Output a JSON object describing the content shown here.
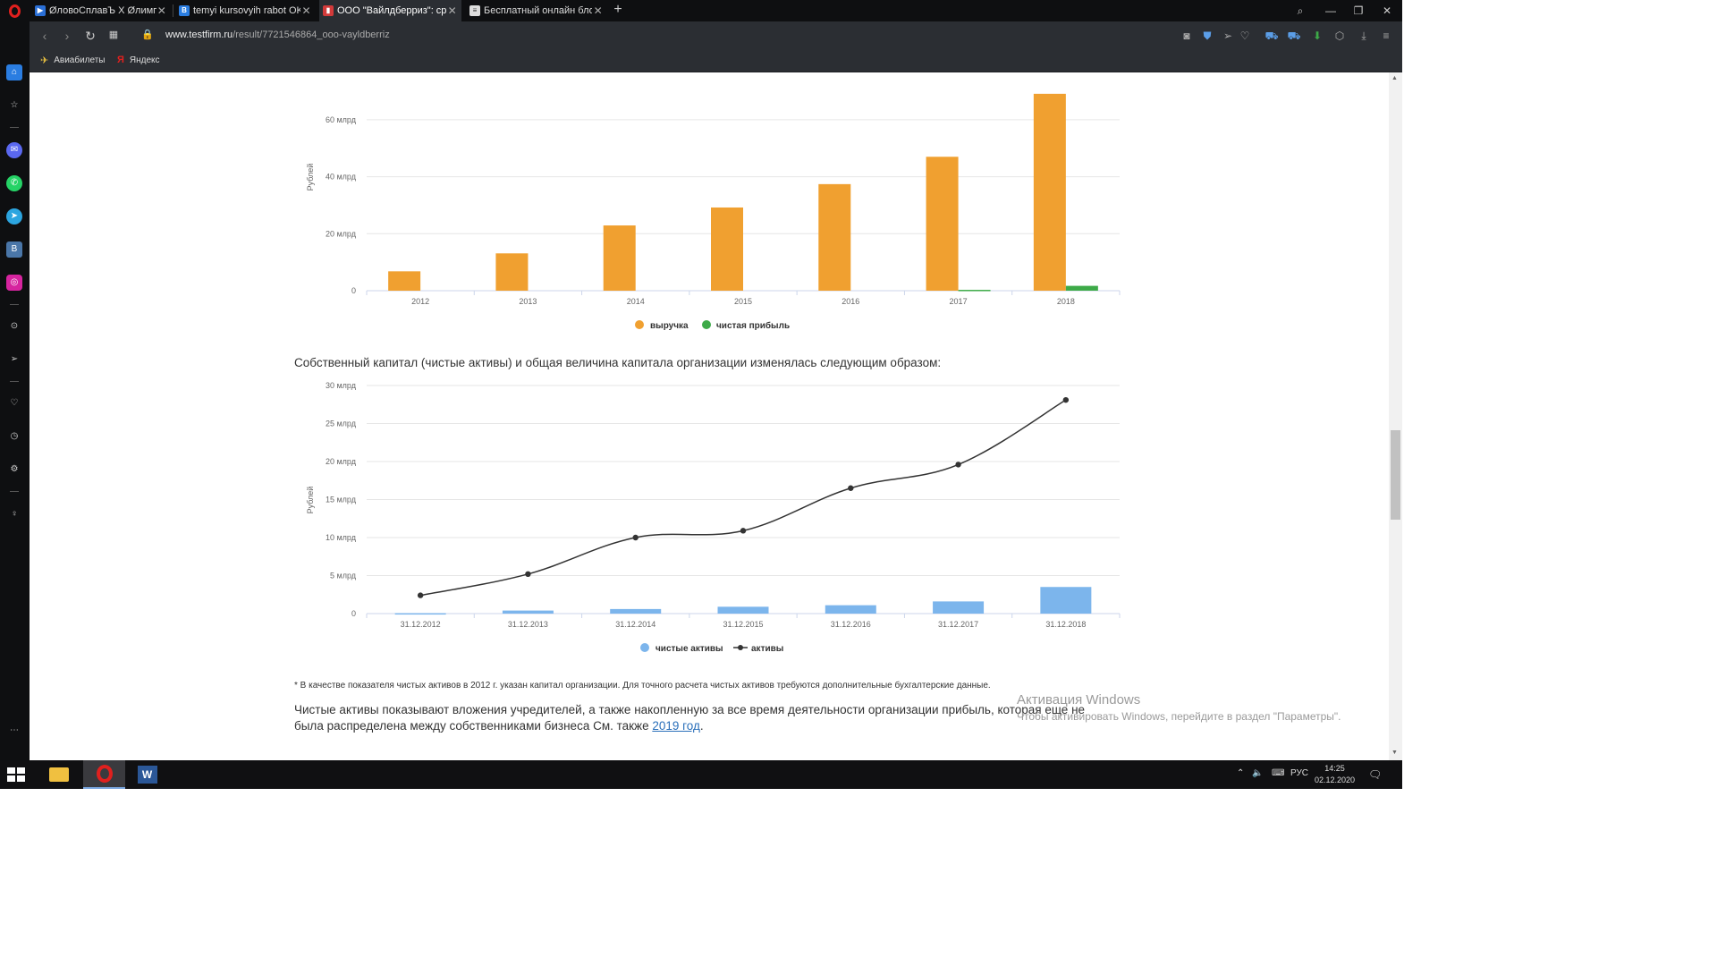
{
  "tabs": [
    {
      "title": "ØловоСплавЪ Х Øлимпий",
      "icon": "play-icon",
      "color": "#2a6fd6",
      "active": false
    },
    {
      "title": "temyi kursovyih rabot OKD",
      "icon": "vk-icon",
      "color": "#2a7de1",
      "active": false
    },
    {
      "title": "ООО \"Вайлдберриз\": срав",
      "icon": "bar-chart-icon",
      "color": "#d23a3a",
      "active": true
    },
    {
      "title": "Бесплатный онлайн блокн",
      "icon": "document-icon",
      "color": "#dddddd",
      "active": false
    }
  ],
  "address": {
    "domain": "www.testfirm.ru",
    "path": "/result/7721546864_ooo-vayldberriz"
  },
  "bookmarks": [
    {
      "label": "Авиабилеты",
      "icon": "plane-icon"
    },
    {
      "label": "Яндекс",
      "icon": "yandex-icon"
    }
  ],
  "paragraph1": "Собственный капитал (чистые активы) и общая величина капитала организации изменялась следующим образом:",
  "footnote": "* В качестве показателя чистых активов в 2012 г. указан капитал организации. Для точного расчета чистых активов требуются дополнительные бухгалтерские данные.",
  "paragraph2": {
    "text": "Чистые активы показывают вложения учредителей, а также накопленную за все время деятельности организации прибыль, которая еще не была распределена между собственниками бизнеса См. также ",
    "link": "2019 год",
    "end": "."
  },
  "watermark": {
    "line1": "Активация Windows",
    "line2": "Чтобы активировать Windows, перейдите в раздел \"Параметры\"."
  },
  "taskbar": {
    "lang": "РУС",
    "time": "14:25",
    "date": "02.12.2020"
  },
  "chart_data": [
    {
      "type": "bar",
      "categories": [
        "2012",
        "2013",
        "2014",
        "2015",
        "2016",
        "2017",
        "2018"
      ],
      "ylabel": "Рублей",
      "yticks": [
        {
          "v": 0,
          "label": "0"
        },
        {
          "v": 20,
          "label": "20 млрд"
        },
        {
          "v": 40,
          "label": "40 млрд"
        },
        {
          "v": 60,
          "label": "60 млрд"
        }
      ],
      "ylim": [
        0,
        70
      ],
      "unit": "млрд руб.",
      "series": [
        {
          "name": "выручка",
          "color": "#f0a030",
          "values": [
            6.8,
            13.1,
            22.9,
            29.2,
            37.4,
            47.0,
            69.1
          ]
        },
        {
          "name": "чистая прибыль",
          "color": "#3daa48",
          "values": [
            0,
            0,
            0,
            0,
            0,
            0.3,
            1.7
          ]
        }
      ],
      "grid": true,
      "legend": "bottom"
    },
    {
      "type": "bar+line",
      "categories": [
        "31.12.2012",
        "31.12.2013",
        "31.12.2014",
        "31.12.2015",
        "31.12.2016",
        "31.12.2017",
        "31.12.2018"
      ],
      "ylabel": "Рублей",
      "yticks": [
        {
          "v": 0,
          "label": "0"
        },
        {
          "v": 5,
          "label": "5 млрд"
        },
        {
          "v": 10,
          "label": "10 млрд"
        },
        {
          "v": 15,
          "label": "15 млрд"
        },
        {
          "v": 20,
          "label": "20 млрд"
        },
        {
          "v": 25,
          "label": "25 млрд"
        },
        {
          "v": 30,
          "label": "30 млрд"
        }
      ],
      "ylim": [
        0,
        30
      ],
      "unit": "млрд руб.",
      "series": [
        {
          "name": "чистые активы",
          "kind": "bar",
          "color": "#7cb5ec",
          "values": [
            0.05,
            0.4,
            0.6,
            0.9,
            1.1,
            1.6,
            3.5
          ]
        },
        {
          "name": "активы",
          "kind": "line",
          "color": "#333333",
          "values": [
            2.4,
            5.2,
            10.0,
            10.9,
            16.5,
            19.6,
            28.1
          ]
        }
      ],
      "grid": true,
      "legend": "bottom"
    }
  ]
}
